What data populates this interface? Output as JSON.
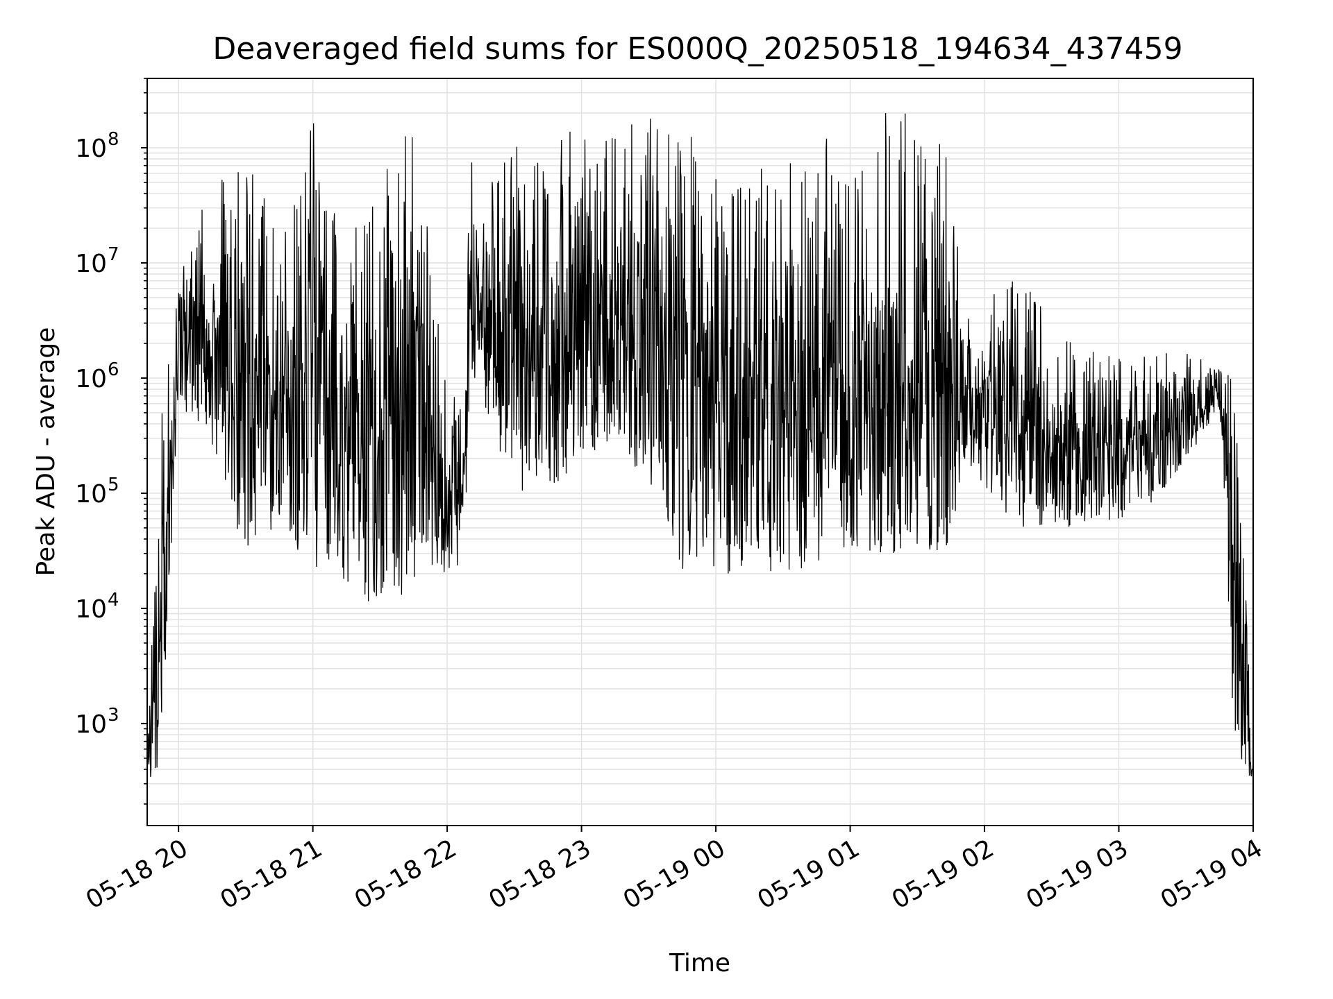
{
  "chart_data": {
    "type": "line",
    "title": "Deaveraged field sums for ES000Q_20250518_194634_437459",
    "xlabel": "Time",
    "ylabel": "Peak ADU - average",
    "y_scale": "log",
    "ylim": [
      130,
      400000000
    ],
    "xlim": [
      "2025-05-18 19:46",
      "2025-05-19 04:00"
    ],
    "grid": true,
    "grid_minor": true,
    "line_color": "#000000",
    "x_ticks": [
      {
        "t": "2025-05-18 20:00",
        "label": "05-18 20"
      },
      {
        "t": "2025-05-18 21:00",
        "label": "05-18 21"
      },
      {
        "t": "2025-05-18 22:00",
        "label": "05-18 22"
      },
      {
        "t": "2025-05-18 23:00",
        "label": "05-18 23"
      },
      {
        "t": "2025-05-19 00:00",
        "label": "05-19 00"
      },
      {
        "t": "2025-05-19 01:00",
        "label": "05-19 01"
      },
      {
        "t": "2025-05-19 02:00",
        "label": "05-19 02"
      },
      {
        "t": "2025-05-19 03:00",
        "label": "05-19 03"
      },
      {
        "t": "2025-05-19 04:00",
        "label": "05-19 04"
      }
    ],
    "y_ticks": [
      {
        "value": 1000,
        "base": "10",
        "exp": "3"
      },
      {
        "value": 10000,
        "base": "10",
        "exp": "4"
      },
      {
        "value": 100000,
        "base": "10",
        "exp": "5"
      },
      {
        "value": 1000000,
        "base": "10",
        "exp": "6"
      },
      {
        "value": 10000000,
        "base": "10",
        "exp": "7"
      },
      {
        "value": 100000000,
        "base": "10",
        "exp": "8"
      }
    ],
    "envelope": [
      {
        "t": "2025-05-18 19:46",
        "low": 300,
        "high": 600
      },
      {
        "t": "2025-05-18 19:52",
        "low": 300,
        "high": 1500000
      },
      {
        "t": "2025-05-18 20:00",
        "low": 600000,
        "high": 12000000
      },
      {
        "t": "2025-05-18 20:15",
        "low": 200000,
        "high": 60000000
      },
      {
        "t": "2025-05-18 20:30",
        "low": 30000,
        "high": 100000000
      },
      {
        "t": "2025-05-18 20:45",
        "low": 50000,
        "high": 20000000
      },
      {
        "t": "2025-05-18 21:00",
        "low": 20000,
        "high": 180000000
      },
      {
        "t": "2025-05-18 21:15",
        "low": 15000,
        "high": 20000000
      },
      {
        "t": "2025-05-18 21:30",
        "low": 9000,
        "high": 60000000
      },
      {
        "t": "2025-05-18 21:45",
        "low": 15000,
        "high": 180000000
      },
      {
        "t": "2025-05-18 22:00",
        "low": 20000,
        "high": 1000000
      },
      {
        "t": "2025-05-18 22:08",
        "low": 20000,
        "high": 900000
      },
      {
        "t": "2025-05-18 22:10",
        "low": 1000000,
        "high": 80000000
      },
      {
        "t": "2025-05-18 22:30",
        "low": 100000,
        "high": 100000000
      },
      {
        "t": "2025-05-18 22:45",
        "low": 100000,
        "high": 130000000
      },
      {
        "t": "2025-05-18 23:00",
        "low": 200000,
        "high": 150000000
      },
      {
        "t": "2025-05-18 23:15",
        "low": 300000,
        "high": 200000000
      },
      {
        "t": "2025-05-18 23:30",
        "low": 100000,
        "high": 200000000
      },
      {
        "t": "2025-05-18 23:45",
        "low": 20000,
        "high": 180000000
      },
      {
        "t": "2025-05-19 00:00",
        "low": 20000,
        "high": 80000000
      },
      {
        "t": "2025-05-19 00:15",
        "low": 20000,
        "high": 60000000
      },
      {
        "t": "2025-05-19 00:30",
        "low": 20000,
        "high": 80000000
      },
      {
        "t": "2025-05-19 00:45",
        "low": 20000,
        "high": 180000000
      },
      {
        "t": "2025-05-19 01:00",
        "low": 30000,
        "high": 50000000
      },
      {
        "t": "2025-05-19 01:15",
        "low": 30000,
        "high": 200000000
      },
      {
        "t": "2025-05-19 01:30",
        "low": 30000,
        "high": 200000000
      },
      {
        "t": "2025-05-19 01:45",
        "low": 30000,
        "high": 150000000
      },
      {
        "t": "2025-05-19 01:50",
        "low": 200000,
        "high": 3000000
      },
      {
        "t": "2025-05-19 02:15",
        "low": 50000,
        "high": 10000000
      },
      {
        "t": "2025-05-19 02:30",
        "low": 50000,
        "high": 3000000
      },
      {
        "t": "2025-05-19 02:45",
        "low": 50000,
        "high": 2000000
      },
      {
        "t": "2025-05-19 03:00",
        "low": 60000,
        "high": 1500000
      },
      {
        "t": "2025-05-19 03:15",
        "low": 80000,
        "high": 1600000
      },
      {
        "t": "2025-05-19 03:30",
        "low": 200000,
        "high": 1800000
      },
      {
        "t": "2025-05-19 03:45",
        "low": 500000,
        "high": 1200000
      },
      {
        "t": "2025-05-19 03:52",
        "low": 400,
        "high": 1000000
      },
      {
        "t": "2025-05-19 04:00",
        "low": 300,
        "high": 600
      }
    ]
  }
}
